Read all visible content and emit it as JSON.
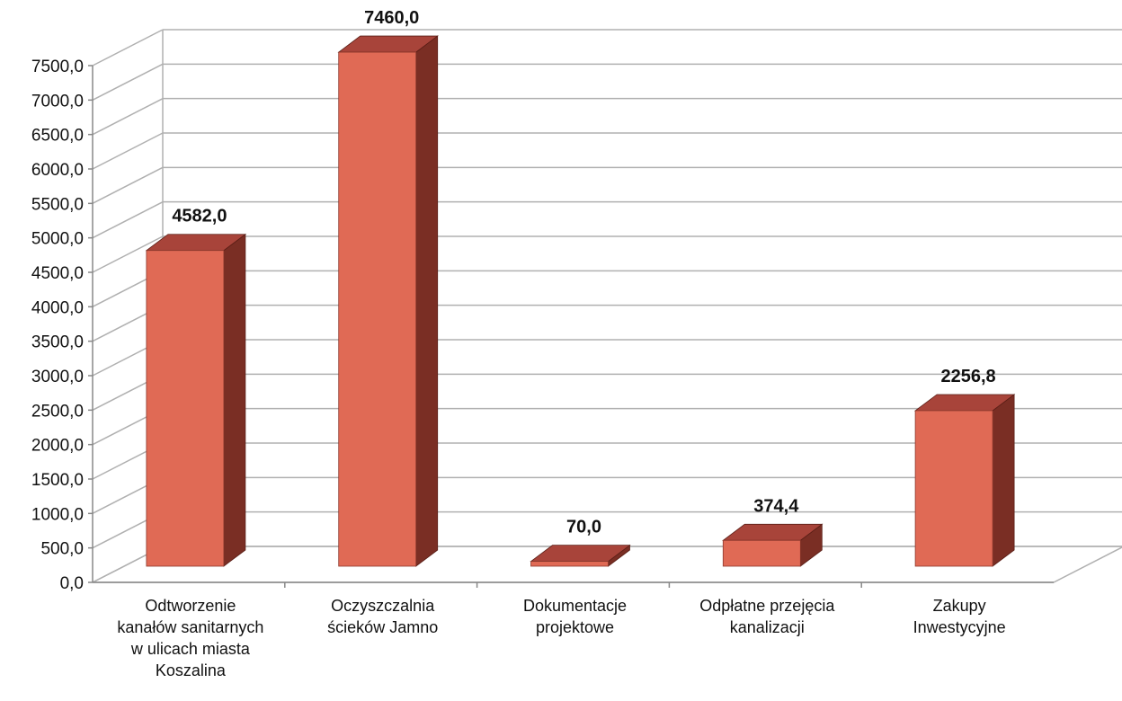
{
  "chart_data": {
    "type": "bar",
    "title": "",
    "xlabel": "",
    "ylabel": "",
    "ylim": [
      0,
      7500
    ],
    "ytick_step": 500,
    "ytick_labels": [
      "0,0",
      "500,0",
      "1000,0",
      "1500,0",
      "2000,0",
      "2500,0",
      "3000,0",
      "3500,0",
      "4000,0",
      "4500,0",
      "5000,0",
      "5500,0",
      "6000,0",
      "6500,0",
      "7000,0",
      "7500,0"
    ],
    "grid": true,
    "three_d": true,
    "colors": {
      "front": "#e06a55",
      "side": "#7a2e24",
      "top": "#a8443a",
      "grid": "#b0b0b0",
      "axis": "#888888"
    },
    "categories": [
      [
        "Odtworzenie",
        "kanałów sanitarnych",
        "w ulicach miasta",
        "Koszalina"
      ],
      [
        "Oczyszczalnia",
        "ścieków Jamno"
      ],
      [
        "Dokumentacje",
        "projektowe"
      ],
      [
        "Odpłatne przejęcia",
        "kanalizacji"
      ],
      [
        "Zakupy",
        "Inwestycyjne"
      ]
    ],
    "values": [
      4582.0,
      7460.0,
      70.0,
      374.4,
      2256.8
    ],
    "value_labels": [
      "4582,0",
      "7460,0",
      "70,0",
      "374,4",
      "2256,8"
    ]
  }
}
